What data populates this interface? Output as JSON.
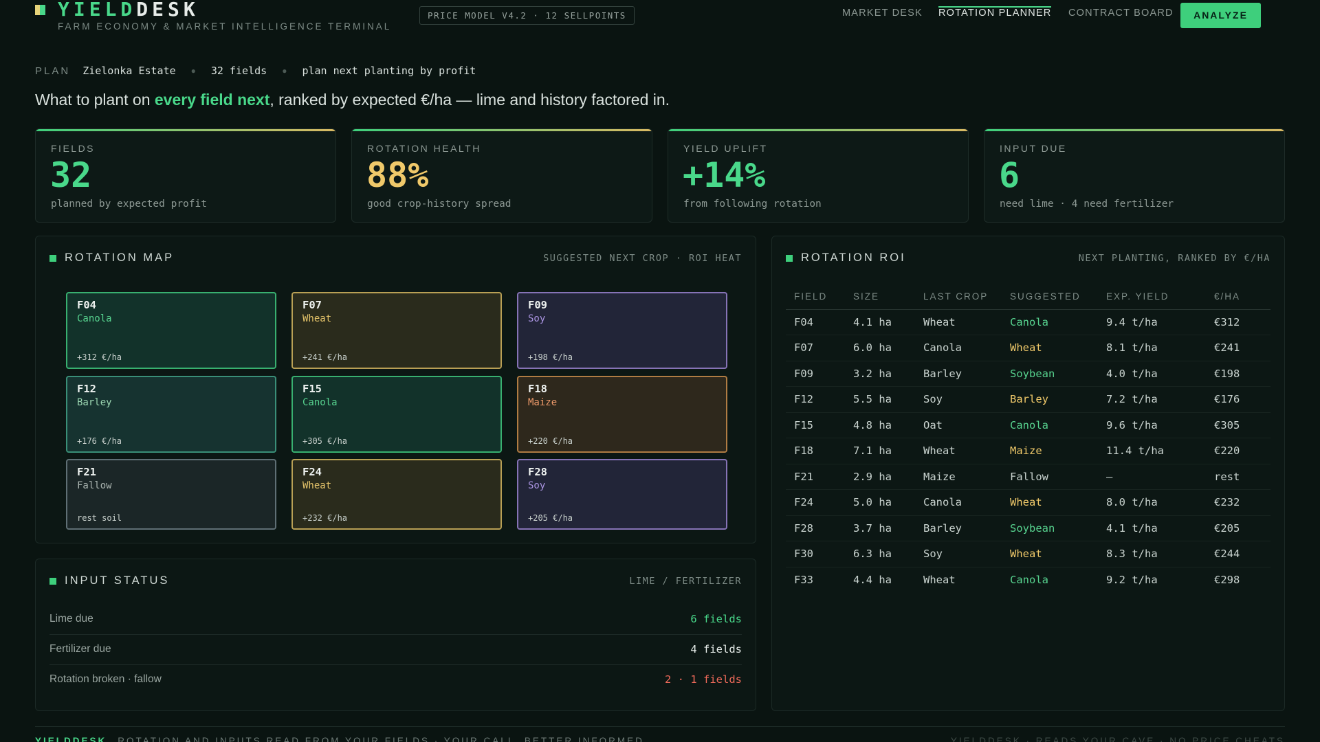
{
  "brand": {
    "name_part1": "YIELD",
    "name_part2": "DESK",
    "tagline": "FARM ECONOMY & MARKET INTELLIGENCE TERMINAL"
  },
  "header": {
    "price_model": "PRICE MODEL V4.2 · 12 SELLPOINTS",
    "nav": [
      "MARKET DESK",
      "ROTATION PLANNER",
      "CONTRACT BOARD"
    ],
    "active_nav": "ROTATION PLANNER",
    "analyze_label": "ANALYZE"
  },
  "plan": {
    "label": "PLAN",
    "estate": "Zielonka Estate",
    "fields": "32 fields",
    "mode": "plan next planting by profit"
  },
  "headline": {
    "before": "What to plant on ",
    "accent": "every field next",
    "after": ", ranked by expected €/ha — lime and history factored in."
  },
  "kpis": [
    {
      "label": "FIELDS",
      "value": "32",
      "sub": "planned by expected profit",
      "color": "#49d88a"
    },
    {
      "label": "ROTATION HEALTH",
      "value": "88%",
      "sub": "good crop-history spread",
      "color": "#f0c96a"
    },
    {
      "label": "YIELD UPLIFT",
      "value": "+14%",
      "sub": "from following rotation",
      "color": "#49d88a"
    },
    {
      "label": "INPUT DUE",
      "value": "6",
      "sub": "need lime · 4 need fertilizer",
      "color": "#49d88a"
    }
  ],
  "rotation_map": {
    "title": "ROTATION MAP",
    "meta": "SUGGESTED NEXT CROP · ROI HEAT",
    "tiles": [
      {
        "id": "F04",
        "crop": "Canola",
        "roi": "+312 €/ha",
        "tone": "green"
      },
      {
        "id": "F07",
        "crop": "Wheat",
        "roi": "+241 €/ha",
        "tone": "yellow"
      },
      {
        "id": "F09",
        "crop": "Soy",
        "roi": "+198 €/ha",
        "tone": "purple"
      },
      {
        "id": "F12",
        "crop": "Barley",
        "roi": "+176 €/ha",
        "tone": "teal"
      },
      {
        "id": "F15",
        "crop": "Canola",
        "roi": "+305 €/ha",
        "tone": "green"
      },
      {
        "id": "F18",
        "crop": "Maize",
        "roi": "+220 €/ha",
        "tone": "orange"
      },
      {
        "id": "F21",
        "crop": "Fallow",
        "roi": "rest soil",
        "tone": "grey"
      },
      {
        "id": "F24",
        "crop": "Wheat",
        "roi": "+232 €/ha",
        "tone": "yellow"
      },
      {
        "id": "F28",
        "crop": "Soy",
        "roi": "+205 €/ha",
        "tone": "purple"
      }
    ]
  },
  "input_status": {
    "title": "INPUT STATUS",
    "meta": "LIME / FERTILIZER",
    "rows": [
      {
        "label": "Lime due",
        "value": "6 fields",
        "color": "#49d88a"
      },
      {
        "label": "Fertilizer due",
        "value": "4 fields",
        "color": "#e6ece9"
      },
      {
        "label": "Rotation broken · fallow",
        "value": "2 · 1 fields",
        "color": "#ef6a5a"
      }
    ]
  },
  "rotation_roi": {
    "title": "ROTATION ROI",
    "meta": "NEXT PLANTING, RANKED BY €/HA",
    "columns": [
      "FIELD",
      "SIZE",
      "LAST CROP",
      "SUGGESTED",
      "EXP. YIELD",
      "€/HA"
    ],
    "rows": [
      {
        "field": "F04",
        "size": "4.1 ha",
        "last": "Wheat",
        "suggested": "Canola",
        "yield": "9.4 t/ha",
        "eur": "€312",
        "color": "#57d38f"
      },
      {
        "field": "F07",
        "size": "6.0 ha",
        "last": "Canola",
        "suggested": "Wheat",
        "yield": "8.1 t/ha",
        "eur": "€241",
        "color": "#f0c96a"
      },
      {
        "field": "F09",
        "size": "3.2 ha",
        "last": "Barley",
        "suggested": "Soybean",
        "yield": "4.0 t/ha",
        "eur": "€198",
        "color": "#57d38f"
      },
      {
        "field": "F12",
        "size": "5.5 ha",
        "last": "Soy",
        "suggested": "Barley",
        "yield": "7.2 t/ha",
        "eur": "€176",
        "color": "#f0c96a"
      },
      {
        "field": "F15",
        "size": "4.8 ha",
        "last": "Oat",
        "suggested": "Canola",
        "yield": "9.6 t/ha",
        "eur": "€305",
        "color": "#57d38f"
      },
      {
        "field": "F18",
        "size": "7.1 ha",
        "last": "Wheat",
        "suggested": "Maize",
        "yield": "11.4 t/ha",
        "eur": "€220",
        "color": "#f0c96a"
      },
      {
        "field": "F21",
        "size": "2.9 ha",
        "last": "Maize",
        "suggested": "Fallow",
        "yield": "—",
        "eur": "rest",
        "color": "#c9d3cf"
      },
      {
        "field": "F24",
        "size": "5.0 ha",
        "last": "Canola",
        "suggested": "Wheat",
        "yield": "8.0 t/ha",
        "eur": "€232",
        "color": "#f0c96a"
      },
      {
        "field": "F28",
        "size": "3.7 ha",
        "last": "Barley",
        "suggested": "Soybean",
        "yield": "4.1 t/ha",
        "eur": "€205",
        "color": "#57d38f"
      },
      {
        "field": "F30",
        "size": "6.3 ha",
        "last": "Soy",
        "suggested": "Wheat",
        "yield": "8.3 t/ha",
        "eur": "€244",
        "color": "#f0c96a"
      },
      {
        "field": "F33",
        "size": "4.4 ha",
        "last": "Wheat",
        "suggested": "Canola",
        "yield": "9.2 t/ha",
        "eur": "€298",
        "color": "#57d38f"
      }
    ]
  },
  "footer": {
    "brand": "YIELDDESK",
    "left": "ROTATION AND INPUTS READ FROM YOUR FIELDS · YOUR CALL, BETTER INFORMED",
    "right": "YIELDDESK · READS YOUR CAVE · NO PRICE CHEATS"
  }
}
